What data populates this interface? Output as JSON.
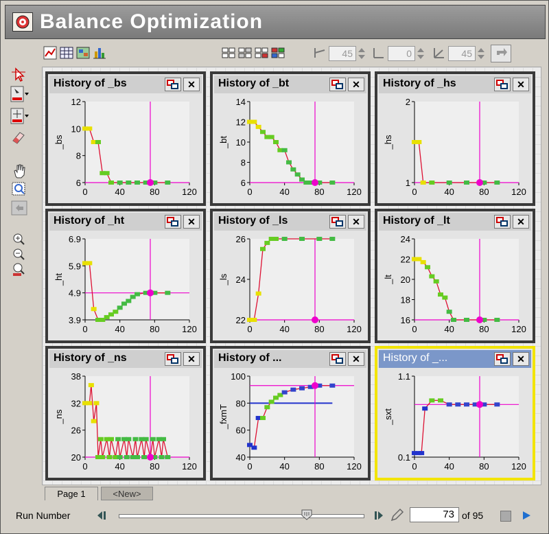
{
  "app": {
    "title": "Balance  Optimization"
  },
  "toolbar": {
    "view_icons": [
      "line-chart-icon",
      "table-grid-icon",
      "image-map-icon",
      "bar-chart-icon"
    ],
    "layout_icons": [
      "layout-1-icon",
      "layout-2-icon",
      "layout-3-icon",
      "layout-4-icon"
    ],
    "angle_x": "45",
    "angle_y": "0",
    "angle_z": "45"
  },
  "left_tools": [
    "select-icon",
    "marker-tool-icon",
    "crosshair-tool-icon",
    "eraser-icon",
    "pan-icon",
    "zoom-box-icon",
    "undo-zoom-icon",
    "zoom-in-icon",
    "zoom-out-icon",
    "zoom-100-icon"
  ],
  "panels": [
    {
      "title": "History of _bs",
      "ylabel": "_bs",
      "yticks": [
        "12",
        "10",
        "8",
        "6"
      ],
      "xticks": [
        "0",
        "40",
        "80",
        "120"
      ]
    },
    {
      "title": "History of _bt",
      "ylabel": "_bt",
      "yticks": [
        "14",
        "12",
        "10",
        "8",
        "6"
      ],
      "xticks": [
        "0",
        "40",
        "80",
        "120"
      ]
    },
    {
      "title": "History of _hs",
      "ylabel": "_hs",
      "yticks": [
        "2",
        "1"
      ],
      "xticks": [
        "0",
        "40",
        "80",
        "120"
      ]
    },
    {
      "title": "History of _ht",
      "ylabel": "_ht",
      "yticks": [
        "6.9",
        "5.9",
        "4.9",
        "3.9"
      ],
      "xticks": [
        "0",
        "40",
        "80",
        "120"
      ]
    },
    {
      "title": "History of _ls",
      "ylabel": "_ls",
      "yticks": [
        "26",
        "24",
        "22"
      ],
      "xticks": [
        "0",
        "40",
        "80",
        "120"
      ]
    },
    {
      "title": "History of _lt",
      "ylabel": "_lt",
      "yticks": [
        "24",
        "22",
        "20",
        "18",
        "16"
      ],
      "xticks": [
        "0",
        "40",
        "80",
        "120"
      ]
    },
    {
      "title": "History of _ns",
      "ylabel": "_ns",
      "yticks": [
        "38",
        "32",
        "26",
        "20"
      ],
      "xticks": [
        "0",
        "40",
        "80",
        "120"
      ]
    },
    {
      "title": "History of ...",
      "ylabel": "_fxmT",
      "yticks": [
        "100",
        "80",
        "60",
        "40"
      ],
      "xticks": [
        "0",
        "40",
        "80",
        "120"
      ]
    },
    {
      "title": "History of _...",
      "ylabel": "_sxt",
      "yticks": [
        "1.1",
        "0.1"
      ],
      "xticks": [
        "0",
        "40",
        "80",
        "120"
      ]
    }
  ],
  "tabs": [
    "Page 1",
    "<New>"
  ],
  "run": {
    "label": "Run Number",
    "current": "73",
    "total": "of 95"
  },
  "chart_data": [
    {
      "type": "line",
      "title": "History of _bs",
      "ylabel": "_bs",
      "xlim": [
        0,
        120
      ],
      "ylim": [
        6,
        12
      ],
      "marker_x": 75,
      "series": [
        {
          "x": [
            0,
            5,
            10,
            15,
            20,
            25,
            30,
            40,
            50,
            60,
            70,
            80,
            95
          ],
          "values": [
            10,
            10,
            9,
            9,
            6.7,
            6.7,
            6,
            6,
            6,
            6,
            6,
            6,
            6
          ]
        }
      ]
    },
    {
      "type": "line",
      "title": "History of _bt",
      "ylabel": "_bt",
      "xlim": [
        0,
        120
      ],
      "ylim": [
        6,
        14
      ],
      "marker_x": 75,
      "series": [
        {
          "x": [
            0,
            5,
            10,
            15,
            20,
            25,
            30,
            35,
            40,
            45,
            50,
            55,
            60,
            65,
            70,
            80,
            95
          ],
          "values": [
            12,
            12,
            11.5,
            11,
            10.5,
            10.5,
            10,
            9.2,
            9.2,
            8,
            7.3,
            6.8,
            6.3,
            6,
            6,
            6,
            6
          ]
        }
      ]
    },
    {
      "type": "line",
      "title": "History of _hs",
      "ylabel": "_hs",
      "xlim": [
        0,
        120
      ],
      "ylim": [
        1,
        2
      ],
      "marker_x": 75,
      "series": [
        {
          "x": [
            0,
            5,
            10,
            20,
            40,
            60,
            80,
            95
          ],
          "values": [
            1.5,
            1.5,
            1,
            1,
            1,
            1,
            1,
            1
          ]
        }
      ]
    },
    {
      "type": "line",
      "title": "History of _ht",
      "ylabel": "_ht",
      "xlim": [
        0,
        120
      ],
      "ylim": [
        3.9,
        6.9
      ],
      "marker_x": 75,
      "marker_y": 4.9,
      "series": [
        {
          "x": [
            0,
            5,
            10,
            15,
            20,
            25,
            30,
            35,
            40,
            45,
            50,
            55,
            60,
            70,
            80,
            95
          ],
          "values": [
            6,
            6,
            4.3,
            3.9,
            3.9,
            4,
            4.1,
            4.2,
            4.35,
            4.5,
            4.6,
            4.75,
            4.85,
            4.9,
            4.9,
            4.9
          ]
        }
      ]
    },
    {
      "type": "line",
      "title": "History of _ls",
      "ylabel": "_ls",
      "xlim": [
        0,
        120
      ],
      "ylim": [
        22,
        26
      ],
      "marker_x": 75,
      "series": [
        {
          "x": [
            0,
            5,
            10,
            15,
            20,
            25,
            30,
            40,
            60,
            80,
            95
          ],
          "values": [
            22,
            22,
            23.3,
            25.5,
            25.8,
            26,
            26,
            26,
            26,
            26,
            26
          ]
        }
      ]
    },
    {
      "type": "line",
      "title": "History of _lt",
      "ylabel": "_lt",
      "xlim": [
        0,
        120
      ],
      "ylim": [
        16,
        24
      ],
      "marker_x": 75,
      "series": [
        {
          "x": [
            0,
            5,
            10,
            15,
            20,
            25,
            30,
            35,
            40,
            45,
            60,
            80,
            95
          ],
          "values": [
            22,
            22,
            21.7,
            21.2,
            20.3,
            19.8,
            18.5,
            18.2,
            16.8,
            16,
            16,
            16,
            16
          ]
        }
      ]
    },
    {
      "type": "line",
      "title": "History of _ns",
      "ylabel": "_ns",
      "xlim": [
        0,
        120
      ],
      "ylim": [
        20,
        38
      ],
      "marker_x": 75,
      "series": [
        {
          "x": [
            0,
            5,
            7,
            10,
            13,
            15,
            18,
            20,
            25,
            28,
            30,
            35,
            38,
            40,
            45,
            48,
            50,
            55,
            58,
            60,
            65,
            68,
            70,
            75,
            78,
            80,
            85,
            88,
            90,
            95
          ],
          "values": [
            32,
            32,
            36,
            28,
            32,
            20,
            24,
            20,
            24,
            20,
            24,
            20,
            24,
            20,
            24,
            20,
            24,
            20,
            24,
            20,
            24,
            20,
            24,
            20,
            24,
            20,
            24,
            20,
            24,
            20
          ]
        }
      ]
    },
    {
      "type": "line",
      "title": "History of ...",
      "ylabel": "_fxmT",
      "xlim": [
        0,
        120
      ],
      "ylim": [
        40,
        100
      ],
      "marker_x": 75,
      "marker_y": 93,
      "ref_y": 80,
      "series": [
        {
          "x": [
            0,
            5,
            10,
            15,
            20,
            25,
            30,
            35,
            40,
            50,
            60,
            70,
            80,
            95
          ],
          "values": [
            49,
            47,
            69,
            69,
            77,
            81,
            84,
            86,
            88,
            90,
            91,
            92,
            93,
            93
          ]
        }
      ]
    },
    {
      "type": "line",
      "title": "History of _...",
      "ylabel": "_sxt",
      "xlim": [
        0,
        120
      ],
      "ylim": [
        0.1,
        1.1
      ],
      "marker_x": 75,
      "marker_y": 0.75,
      "series": [
        {
          "x": [
            0,
            5,
            8,
            12,
            20,
            30,
            40,
            50,
            60,
            70,
            80,
            95
          ],
          "values": [
            0.15,
            0.15,
            0.15,
            0.7,
            0.8,
            0.8,
            0.75,
            0.75,
            0.75,
            0.75,
            0.75,
            0.75
          ]
        }
      ]
    }
  ]
}
